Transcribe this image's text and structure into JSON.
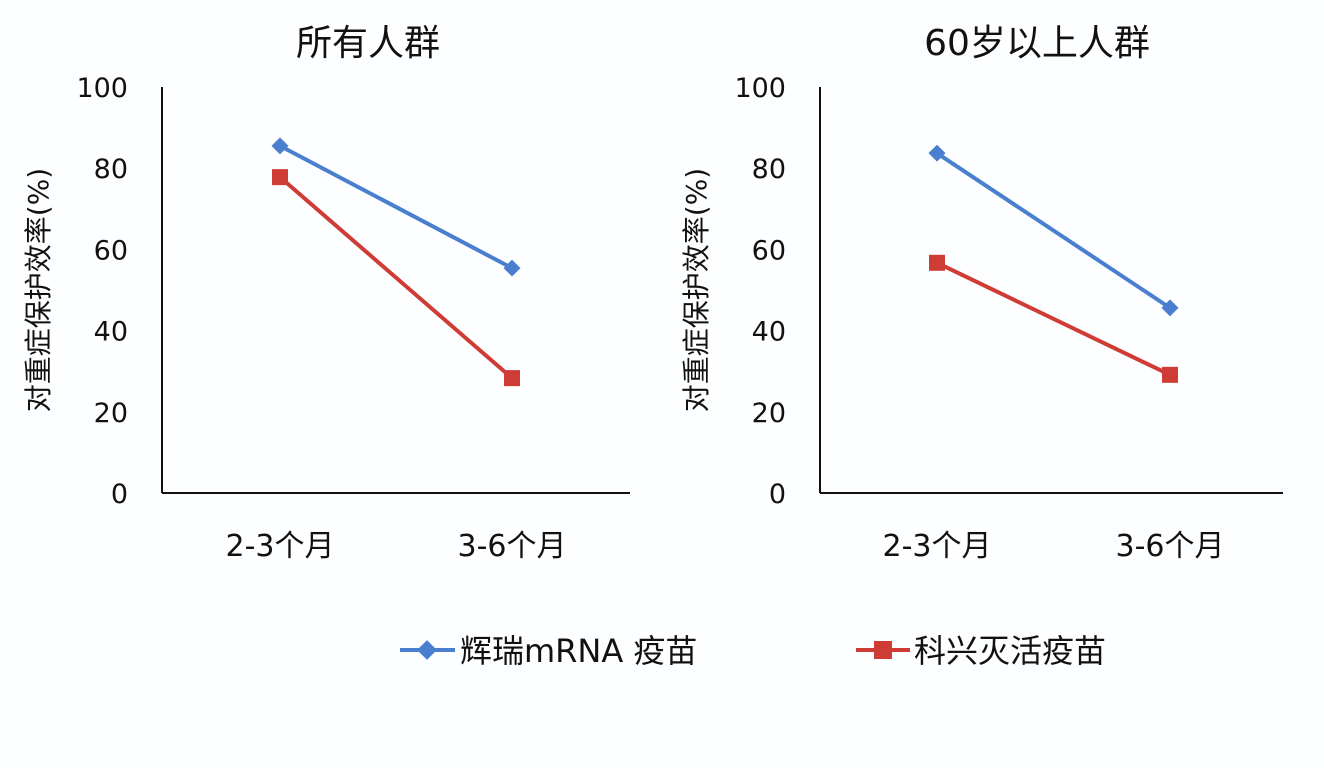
{
  "chart_data": [
    {
      "type": "line",
      "title": "所有人群",
      "ylabel": "对重症保护效率(%)",
      "xlabel": "",
      "categories": [
        "2-3个月",
        "3-6个月"
      ],
      "ylim": [
        0,
        100
      ],
      "yticks": [
        0,
        20,
        40,
        60,
        80,
        100
      ],
      "grid": false,
      "series": [
        {
          "name": "辉瑞mRNA 疫苗",
          "values": [
            85.5,
            55.4
          ],
          "color": "#4a7fcf",
          "marker": "diamond"
        },
        {
          "name": "科兴灭活疫苗",
          "values": [
            77.8,
            28.3
          ],
          "color": "#cf3c35",
          "marker": "square"
        }
      ]
    },
    {
      "type": "line",
      "title": "60岁以上人群",
      "ylabel": "对重症保护效率(%)",
      "xlabel": "",
      "categories": [
        "2-3个月",
        "3-6个月"
      ],
      "ylim": [
        0,
        100
      ],
      "yticks": [
        0,
        20,
        40,
        60,
        80,
        100
      ],
      "grid": false,
      "series": [
        {
          "name": "辉瑞mRNA 疫苗",
          "values": [
            83.7,
            45.6
          ],
          "color": "#4a7fcf",
          "marker": "diamond"
        },
        {
          "name": "科兴灭活疫苗",
          "values": [
            56.7,
            29.1
          ],
          "color": "#cf3c35",
          "marker": "square"
        }
      ]
    }
  ],
  "legend": {
    "placement": "bottom",
    "items": [
      {
        "label": "辉瑞mRNA 疫苗",
        "color": "#4a7fcf",
        "marker": "diamond"
      },
      {
        "label": "科兴灭活疫苗",
        "color": "#cf3c35",
        "marker": "square"
      }
    ]
  }
}
